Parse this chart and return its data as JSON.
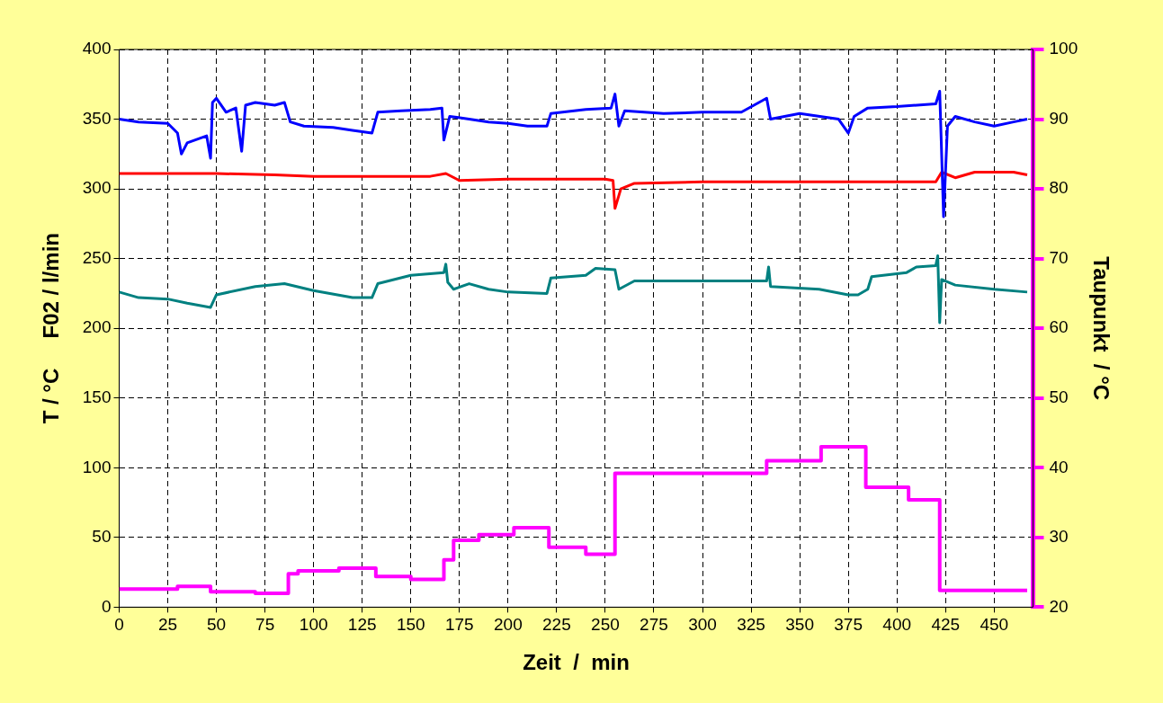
{
  "chart_data": {
    "type": "line",
    "xlabel": "Zeit  /  min",
    "ylabel": "T / °C     F02 / l/min",
    "y2label": "Taupunkt  / °C",
    "xlim": [
      0,
      470
    ],
    "xticks": [
      0,
      25,
      50,
      75,
      100,
      125,
      150,
      175,
      200,
      225,
      250,
      275,
      300,
      325,
      350,
      375,
      400,
      425,
      450
    ],
    "ylim": [
      0,
      400
    ],
    "yticks": [
      0,
      50,
      100,
      150,
      200,
      250,
      300,
      350,
      400
    ],
    "y2lim": [
      20,
      100
    ],
    "y2ticks": [
      20,
      30,
      40,
      50,
      60,
      70,
      80,
      90,
      100
    ],
    "grid": true,
    "legend": false,
    "marker": "none",
    "line_style": "solid",
    "series": [
      {
        "color": "#0000ff",
        "x": [
          0,
          10,
          25,
          30,
          32,
          35,
          45,
          47,
          48,
          50,
          55,
          60,
          63,
          65,
          70,
          80,
          85,
          88,
          95,
          110,
          120,
          130,
          133,
          145,
          160,
          166,
          167,
          170,
          180,
          190,
          200,
          210,
          220,
          222,
          240,
          253,
          255,
          257,
          260,
          280,
          300,
          320,
          333,
          335,
          350,
          370,
          375,
          378,
          385,
          400,
          420,
          422,
          424,
          426,
          430,
          440,
          450,
          460,
          467
        ],
        "values": [
          350,
          348,
          347,
          340,
          325,
          333,
          338,
          322,
          362,
          365,
          355,
          358,
          327,
          360,
          362,
          360,
          362,
          348,
          345,
          344,
          342,
          340,
          355,
          356,
          357,
          358,
          335,
          352,
          350,
          348,
          347,
          345,
          345,
          354,
          357,
          358,
          368,
          345,
          356,
          354,
          355,
          355,
          365,
          350,
          354,
          350,
          340,
          352,
          358,
          359,
          361,
          370,
          280,
          345,
          352,
          348,
          345,
          348,
          350
        ]
      },
      {
        "color": "#ff0000",
        "x": [
          0,
          50,
          80,
          100,
          160,
          168,
          175,
          200,
          250,
          254,
          255,
          258,
          265,
          300,
          420,
          423,
          430,
          440,
          460,
          467
        ],
        "values": [
          311,
          311,
          310,
          309,
          309,
          311,
          306,
          307,
          307,
          306,
          286,
          300,
          304,
          305,
          305,
          312,
          308,
          312,
          312,
          310
        ]
      },
      {
        "color": "#008080",
        "x": [
          0,
          10,
          25,
          35,
          47,
          50,
          70,
          85,
          100,
          120,
          130,
          133,
          150,
          167,
          168,
          169,
          172,
          180,
          190,
          200,
          220,
          222,
          240,
          245,
          255,
          257,
          265,
          300,
          333,
          334,
          335,
          360,
          375,
          380,
          385,
          387,
          405,
          410,
          420,
          421,
          422,
          423,
          430,
          450,
          467
        ],
        "values": [
          226,
          222,
          221,
          218,
          215,
          224,
          230,
          232,
          227,
          222,
          222,
          232,
          238,
          240,
          246,
          233,
          228,
          232,
          228,
          226,
          225,
          236,
          238,
          243,
          242,
          228,
          234,
          234,
          234,
          244,
          230,
          228,
          224,
          224,
          228,
          237,
          240,
          244,
          245,
          252,
          204,
          235,
          231,
          228,
          226
        ]
      },
      {
        "type": "step",
        "axis": "y2",
        "color": "#ff00ff",
        "x": [
          0,
          30,
          47,
          70,
          87,
          92,
          113,
          132,
          150,
          167,
          172,
          185,
          203,
          221,
          240,
          255,
          333,
          361,
          384,
          406,
          422,
          467
        ],
        "values": [
          22.6,
          23,
          22.2,
          22,
          24.8,
          25.2,
          25.6,
          24.4,
          24,
          26.8,
          29.6,
          30.4,
          31.4,
          28.6,
          27.6,
          39.2,
          41,
          43,
          37.2,
          35.4,
          22.4,
          22.4
        ]
      }
    ]
  }
}
